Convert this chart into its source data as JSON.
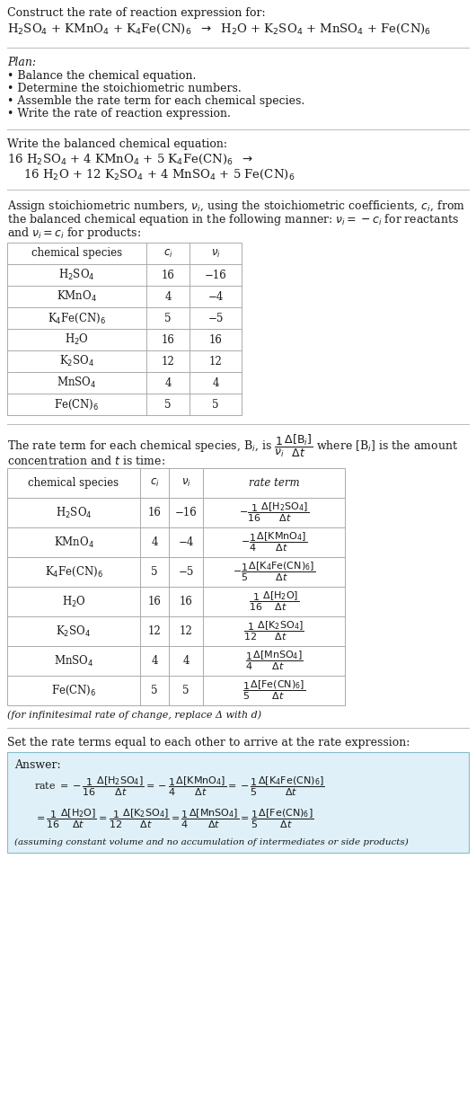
{
  "bg_color": "#ffffff",
  "text_color": "#1a1a1a",
  "title_line1": "Construct the rate of reaction expression for:",
  "plan_title": "Plan:",
  "plan_items": [
    "• Balance the chemical equation.",
    "• Determine the stoichiometric numbers.",
    "• Assemble the rate term for each chemical species.",
    "• Write the rate of reaction expression."
  ],
  "balanced_title": "Write the balanced chemical equation:",
  "stoich_intro_lines": [
    "Assign stoichiometric numbers, $\\nu_i$, using the stoichiometric coefficients, $c_i$, from",
    "the balanced chemical equation in the following manner: $\\nu_i = -c_i$ for reactants",
    "and $\\nu_i = c_i$ for products:"
  ],
  "table1_headers": [
    "chemical species",
    "$c_i$",
    "$\\nu_i$"
  ],
  "table1_rows": [
    [
      "H$_2$SO$_4$",
      "16",
      "−16"
    ],
    [
      "KMnO$_4$",
      "4",
      "−4"
    ],
    [
      "K$_4$Fe(CN)$_6$",
      "5",
      "−5"
    ],
    [
      "H$_2$O",
      "16",
      "16"
    ],
    [
      "K$_2$SO$_4$",
      "12",
      "12"
    ],
    [
      "MnSO$_4$",
      "4",
      "4"
    ],
    [
      "Fe(CN)$_6$",
      "5",
      "5"
    ]
  ],
  "rate_intro_line1": "The rate term for each chemical species, B$_i$, is $\\dfrac{1}{\\nu_i}\\dfrac{\\Delta[\\mathrm{B}_i]}{\\Delta t}$ where [B$_i$] is the amount",
  "rate_intro_line2": "concentration and $t$ is time:",
  "table2_headers": [
    "chemical species",
    "$c_i$",
    "$\\nu_i$",
    "rate term"
  ],
  "table2_rows": [
    [
      "H$_2$SO$_4$",
      "16",
      "−16",
      "$-\\dfrac{1}{16}\\dfrac{\\Delta[\\mathrm{H_2SO_4}]}{\\Delta t}$"
    ],
    [
      "KMnO$_4$",
      "4",
      "−4",
      "$-\\dfrac{1}{4}\\dfrac{\\Delta[\\mathrm{KMnO_4}]}{\\Delta t}$"
    ],
    [
      "K$_4$Fe(CN)$_6$",
      "5",
      "−5",
      "$-\\dfrac{1}{5}\\dfrac{\\Delta[\\mathrm{K_4Fe(CN)_6}]}{\\Delta t}$"
    ],
    [
      "H$_2$O",
      "16",
      "16",
      "$\\dfrac{1}{16}\\dfrac{\\Delta[\\mathrm{H_2O}]}{\\Delta t}$"
    ],
    [
      "K$_2$SO$_4$",
      "12",
      "12",
      "$\\dfrac{1}{12}\\dfrac{\\Delta[\\mathrm{K_2SO_4}]}{\\Delta t}$"
    ],
    [
      "MnSO$_4$",
      "4",
      "4",
      "$\\dfrac{1}{4}\\dfrac{\\Delta[\\mathrm{MnSO_4}]}{\\Delta t}$"
    ],
    [
      "Fe(CN)$_6$",
      "5",
      "5",
      "$\\dfrac{1}{5}\\dfrac{\\Delta[\\mathrm{Fe(CN)_6}]}{\\Delta t}$"
    ]
  ],
  "infinitesimal_note": "(for infinitesimal rate of change, replace Δ with d)",
  "set_equal_text": "Set the rate terms equal to each other to arrive at the rate expression:",
  "answer_label": "Answer:",
  "answer_box_color": "#dff0f8",
  "answer_box_border": "#88bbcc",
  "answer_line1": "rate $= -\\dfrac{1}{16}\\dfrac{\\Delta[\\mathrm{H_2SO_4}]}{\\Delta t} = -\\dfrac{1}{4}\\dfrac{\\Delta[\\mathrm{KMnO_4}]}{\\Delta t} = -\\dfrac{1}{5}\\dfrac{\\Delta[\\mathrm{K_4Fe(CN)_6}]}{\\Delta t}$",
  "answer_line2": "$= \\dfrac{1}{16}\\dfrac{\\Delta[\\mathrm{H_2O}]}{\\Delta t} = \\dfrac{1}{12}\\dfrac{\\Delta[\\mathrm{K_2SO_4}]}{\\Delta t} = \\dfrac{1}{4}\\dfrac{\\Delta[\\mathrm{MnSO_4}]}{\\Delta t} = \\dfrac{1}{5}\\dfrac{\\Delta[\\mathrm{Fe(CN)_6}]}{\\Delta t}$",
  "answer_note": "(assuming constant volume and no accumulation of intermediates or side products)"
}
